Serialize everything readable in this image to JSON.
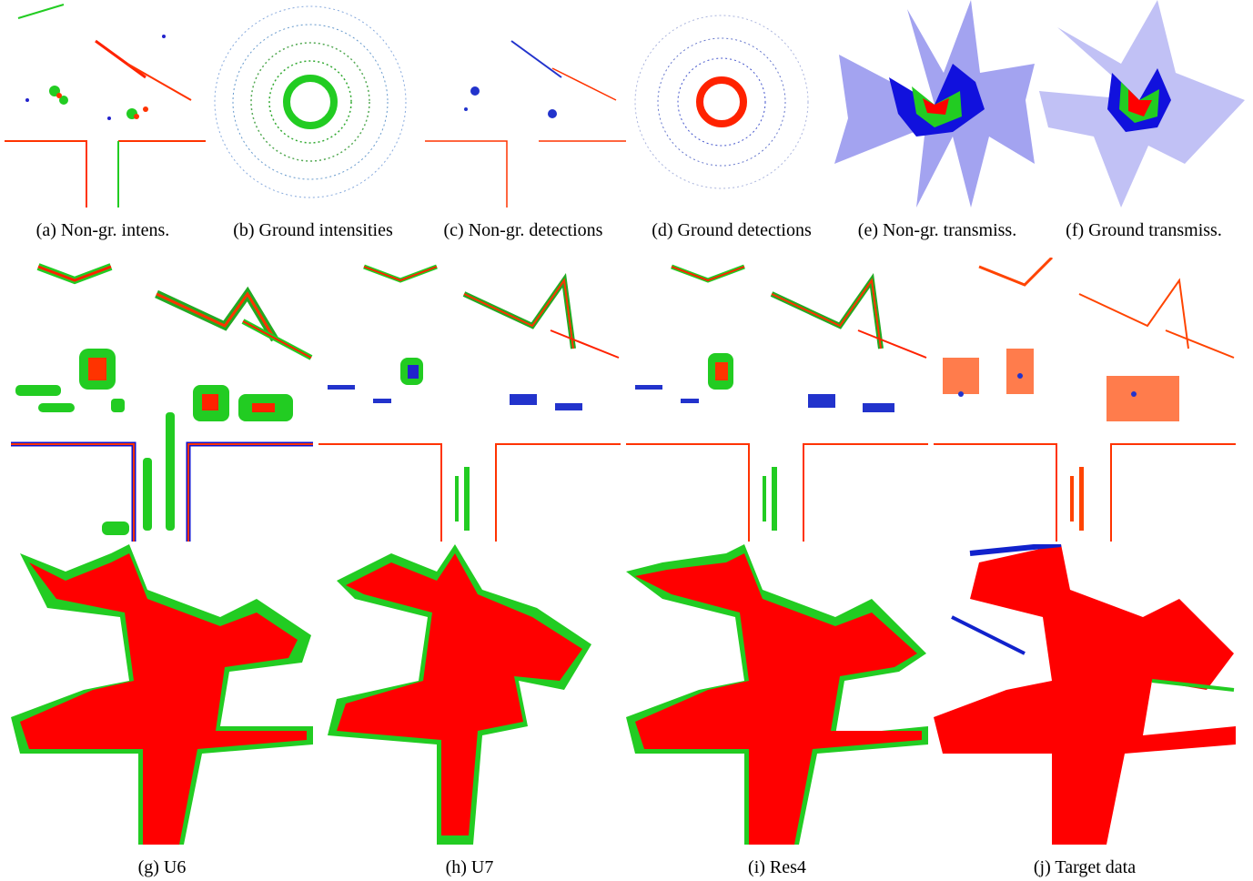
{
  "figure": {
    "top_row": [
      {
        "id": "a",
        "caption": "(a) Non-gr. intens."
      },
      {
        "id": "b",
        "caption": "(b) Ground intensities"
      },
      {
        "id": "c",
        "caption": "(c) Non-gr. detections"
      },
      {
        "id": "d",
        "caption": "(d) Ground detections"
      },
      {
        "id": "e",
        "caption": "(e) Non-gr. transmiss."
      },
      {
        "id": "f",
        "caption": "(f) Ground transmiss."
      }
    ],
    "bottom_row": [
      {
        "id": "g",
        "caption": "(g) U6"
      },
      {
        "id": "h",
        "caption": "(h) U7"
      },
      {
        "id": "i",
        "caption": "(i) Res4"
      },
      {
        "id": "j",
        "caption": "(j) Target data"
      }
    ],
    "colors": {
      "blue": "#1010d0",
      "green": "#22cc22",
      "yellow": "#eeee00",
      "red": "#ff0000"
    }
  }
}
